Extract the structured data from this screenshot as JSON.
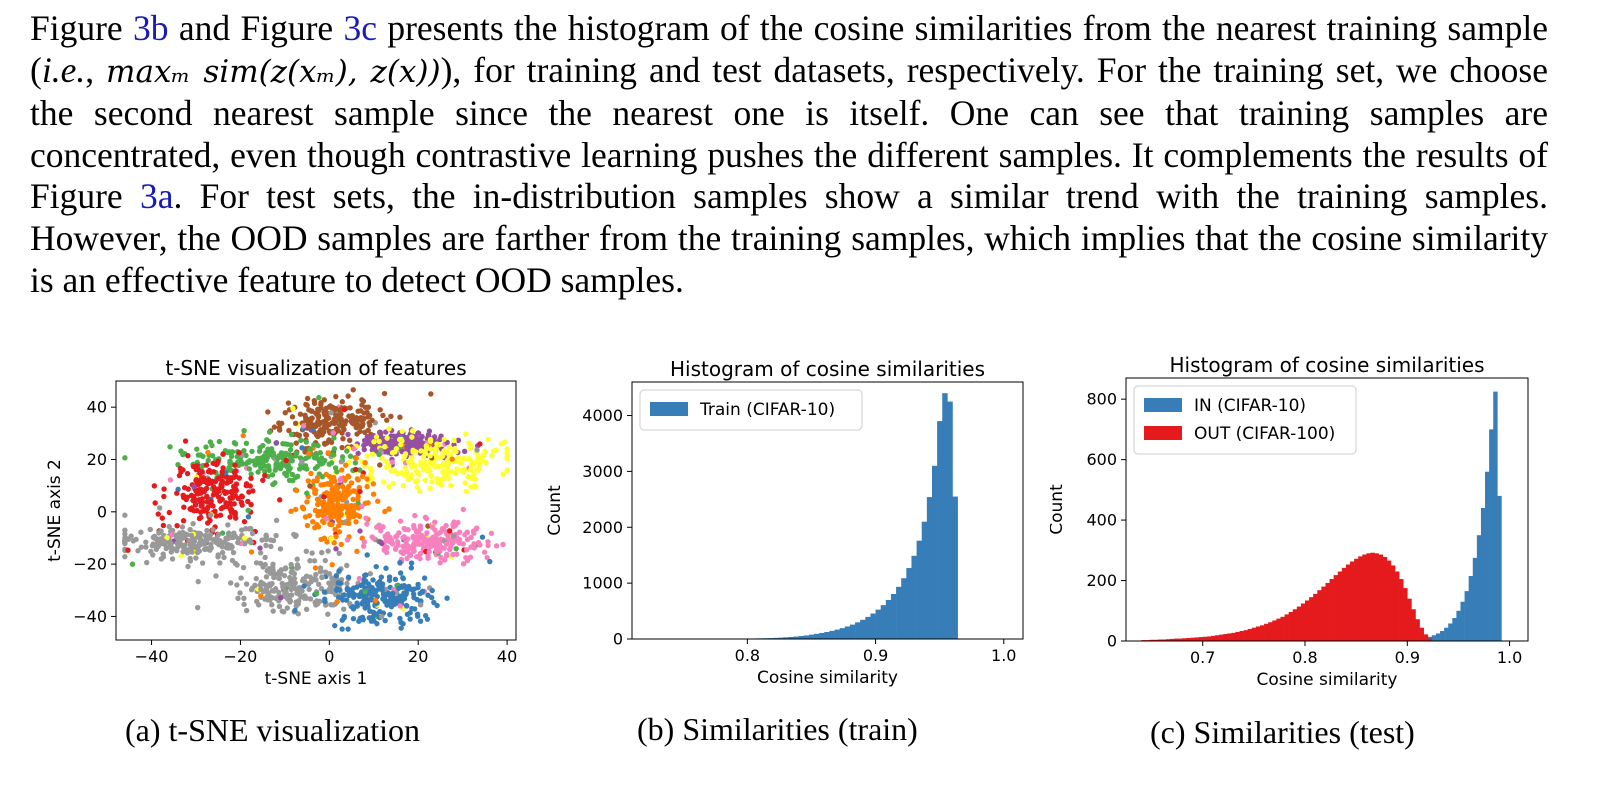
{
  "paragraph": {
    "s1": "Figure ",
    "ref1": "3b",
    "s2": " and Figure ",
    "ref2": "3c",
    "s3": " presents the histogram of the cosine similarities from the nearest training sample (",
    "ie": "i.e.",
    "s4": ", ",
    "formula": "maxₘ sim(z(xₘ), z(x))",
    "s5": "), for training and test datasets, respectively. For the training set, we choose the second nearest sample since the nearest one is itself. One can see that training samples are concentrated, even though contrastive learning pushes the different samples. It complements the results of Figure ",
    "ref3": "3a",
    "s6": ". For test sets, the in-distribution samples show a similar trend with the training samples. However, the OOD samples are farther from the training samples, which implies that the cosine similarity is an effective feature to detect OOD samples."
  },
  "captions": {
    "a": "(a) t-SNE visualization",
    "b": "(b) Similarities (train)",
    "c": "(c) Similarities (test)"
  },
  "chart_data": [
    {
      "type": "scatter",
      "title": "t-SNE visualization of features",
      "xlabel": "t-SNE axis 1",
      "ylabel": "t-SNE axis 2",
      "xlim": [
        -48,
        42
      ],
      "ylim": [
        -49,
        50
      ],
      "xticks": [
        -40,
        -20,
        0,
        20,
        40
      ],
      "yticks": [
        -40,
        -20,
        0,
        20,
        40
      ],
      "xtick_labels": [
        "−40",
        "−20",
        "0",
        "20",
        "40"
      ],
      "ytick_labels": [
        "−40",
        "−20",
        "0",
        "20",
        "40"
      ],
      "legend": "none",
      "clusters": [
        {
          "color": "#a65628",
          "cx": 0,
          "cy": 35,
          "sx": 6,
          "sy": 5
        },
        {
          "color": "#984ea3",
          "cx": 17,
          "cy": 26,
          "sx": 5,
          "sy": 2
        },
        {
          "color": "#ffff33",
          "cx": 24,
          "cy": 19,
          "sx": 8,
          "sy": 5
        },
        {
          "color": "#4daf4a",
          "cx": -14,
          "cy": 20,
          "sx": 9,
          "sy": 4
        },
        {
          "color": "#e41a1c",
          "cx": -26,
          "cy": 7,
          "sx": 5,
          "sy": 6
        },
        {
          "color": "#ff7f00",
          "cx": 2,
          "cy": 3,
          "sx": 4,
          "sy": 7
        },
        {
          "color": "#f781bf",
          "cx": 23,
          "cy": -11,
          "sx": 7,
          "sy": 4
        },
        {
          "color": "#999999",
          "cx": -30,
          "cy": -12,
          "sx": 9,
          "sy": 3
        },
        {
          "color": "#999999",
          "cx": -8,
          "cy": -28,
          "sx": 7,
          "sy": 5
        },
        {
          "color": "#377eb8",
          "cx": 11,
          "cy": -33,
          "sx": 6,
          "sy": 5
        }
      ]
    },
    {
      "type": "bar",
      "title": "Histogram of cosine similarities",
      "xlabel": "Cosine similarity",
      "ylabel": "Count",
      "xlim": [
        0.71,
        1.015
      ],
      "ylim": [
        0,
        4600
      ],
      "xticks": [
        0.8,
        0.9,
        1.0
      ],
      "xtick_labels": [
        "0.8",
        "0.9",
        "1.0"
      ],
      "yticks": [
        0,
        1000,
        2000,
        3000,
        4000
      ],
      "ytick_labels": [
        "0",
        "1000",
        "2000",
        "3000",
        "4000"
      ],
      "legend": "top-left",
      "series": [
        {
          "name": "Train (CIFAR-10)",
          "color": "#377eb8",
          "bin_start": 0.8,
          "bin_width": 0.004,
          "values": [
            8,
            10,
            12,
            14,
            16,
            20,
            24,
            30,
            36,
            44,
            54,
            64,
            78,
            92,
            108,
            126,
            146,
            168,
            194,
            224,
            258,
            298,
            344,
            396,
            456,
            526,
            606,
            698,
            806,
            934,
            1088,
            1270,
            1490,
            1760,
            2100,
            2540,
            3100,
            3900,
            4400,
            4250,
            2550
          ]
        }
      ]
    },
    {
      "type": "bar",
      "title": "Histogram of cosine similarities",
      "xlabel": "Cosine similarity",
      "ylabel": "Count",
      "xlim": [
        0.625,
        1.018
      ],
      "ylim": [
        0,
        870
      ],
      "xticks": [
        0.7,
        0.8,
        0.9,
        1.0
      ],
      "xtick_labels": [
        "0.7",
        "0.8",
        "0.9",
        "1.0"
      ],
      "yticks": [
        0,
        200,
        400,
        600,
        800
      ],
      "ytick_labels": [
        "0",
        "200",
        "400",
        "600",
        "800"
      ],
      "legend": "top-left",
      "series": [
        {
          "name": "IN (CIFAR-10)",
          "color": "#377eb8",
          "bin_start": 0.9,
          "bin_width": 0.004,
          "values": [
            2,
            3,
            5,
            7,
            10,
            14,
            19,
            25,
            33,
            44,
            58,
            76,
            100,
            130,
            165,
            215,
            275,
            350,
            440,
            560,
            700,
            825,
            480
          ]
        },
        {
          "name": "OUT (CIFAR-100)",
          "color": "#e41a1c",
          "bin_start": 0.64,
          "bin_width": 0.004,
          "values": [
            3,
            3,
            4,
            4,
            5,
            5,
            6,
            7,
            8,
            8,
            9,
            10,
            11,
            12,
            13,
            14,
            15,
            17,
            19,
            21,
            23,
            25,
            27,
            30,
            33,
            36,
            40,
            44,
            48,
            52,
            57,
            62,
            68,
            74,
            80,
            88,
            96,
            105,
            114,
            124,
            134,
            145,
            156,
            168,
            180,
            192,
            205,
            218,
            230,
            242,
            253,
            263,
            272,
            280,
            286,
            290,
            292,
            290,
            286,
            278,
            266,
            250,
            230,
            205,
            175,
            140,
            105,
            72,
            44,
            22,
            8
          ]
        }
      ]
    }
  ]
}
